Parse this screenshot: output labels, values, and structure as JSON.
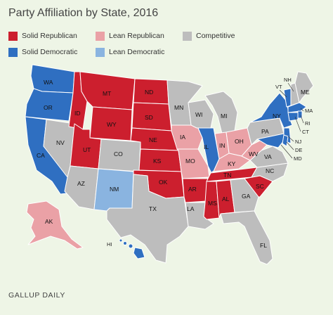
{
  "title": "Party Affiliation by State, 2016",
  "footer": "GALLUP DAILY",
  "colors": {
    "solid_republican": "#cc1f2e",
    "lean_republican": "#eaa1a6",
    "competitive": "#bdbdbd",
    "solid_democratic": "#2f6fc1",
    "lean_democratic": "#8ab4e0",
    "background": "#eef5e6"
  },
  "legend": [
    {
      "key": "solid_republican",
      "label": "Solid Republican"
    },
    {
      "key": "lean_republican",
      "label": "Lean Republican"
    },
    {
      "key": "competitive",
      "label": "Competitive"
    },
    {
      "key": "solid_democratic",
      "label": "Solid Democratic"
    },
    {
      "key": "lean_democratic",
      "label": "Lean Democratic"
    }
  ],
  "states": {
    "WA": "solid_democratic",
    "OR": "solid_democratic",
    "CA": "solid_democratic",
    "NV": "competitive",
    "ID": "solid_republican",
    "MT": "solid_republican",
    "WY": "solid_republican",
    "UT": "solid_republican",
    "AZ": "competitive",
    "CO": "competitive",
    "NM": "lean_democratic",
    "ND": "solid_republican",
    "SD": "solid_republican",
    "NE": "solid_republican",
    "KS": "solid_republican",
    "OK": "solid_republican",
    "TX": "competitive",
    "MN": "competitive",
    "IA": "lean_republican",
    "MO": "lean_republican",
    "AR": "solid_republican",
    "LA": "competitive",
    "WI": "competitive",
    "IL": "solid_democratic",
    "MS": "solid_republican",
    "MI": "competitive",
    "IN": "lean_republican",
    "OH": "lean_republican",
    "KY": "lean_republican",
    "TN": "solid_republican",
    "AL": "solid_republican",
    "GA": "competitive",
    "FL": "competitive",
    "SC": "solid_republican",
    "NC": "competitive",
    "VA": "competitive",
    "WV": "lean_republican",
    "PA": "competitive",
    "NY": "solid_democratic",
    "VT": "solid_democratic",
    "NH": "competitive",
    "ME": "competitive",
    "MA": "solid_democratic",
    "RI": "solid_democratic",
    "CT": "solid_democratic",
    "NJ": "solid_democratic",
    "DE": "solid_democratic",
    "MD": "solid_democratic",
    "AK": "lean_republican",
    "HI": "solid_democratic"
  }
}
